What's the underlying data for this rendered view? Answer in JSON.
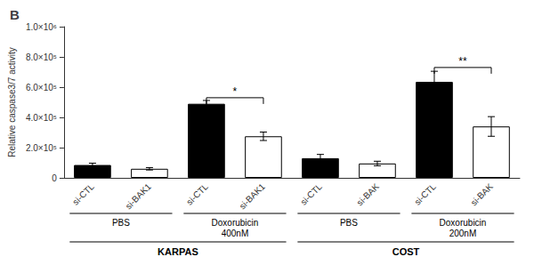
{
  "chart_data": {
    "type": "bar",
    "title": "B",
    "categories": [
      "si-CTL",
      "si-BAK1",
      "si-CTL",
      "si-BAK1",
      "si-CTL",
      "si-BAK",
      "si-CTL",
      "si-BAK"
    ],
    "values": [
      85000,
      60000,
      490000,
      275000,
      130000,
      95000,
      635000,
      340000
    ],
    "errors": [
      12000,
      8000,
      22000,
      28000,
      25000,
      15000,
      70000,
      65000
    ],
    "colors": [
      "#000000",
      "#ffffff",
      "#000000",
      "#ffffff",
      "#000000",
      "#ffffff",
      "#000000",
      "#ffffff"
    ],
    "ylabel": "Relative caspase3/7 activity",
    "ylim": [
      0,
      1000000
    ],
    "yticks": [
      0,
      {
        "value": 200000,
        "label": "2.0×10⁵"
      },
      {
        "value": 400000,
        "label": "4.0×10⁵"
      },
      {
        "value": 600000,
        "label": "6.0×10⁵"
      },
      {
        "value": 800000,
        "label": "8.0×10⁵"
      },
      {
        "value": 1000000,
        "label": "1.0×10⁶"
      }
    ],
    "grid": false,
    "annotations": [
      {
        "text": "*",
        "x": [
          2,
          3
        ],
        "y": 530000
      },
      {
        "text": "**",
        "x": [
          6,
          7
        ],
        "y": 730000
      }
    ],
    "x_groups": [
      [
        {
          "text": "PBS",
          "x": [
            0,
            1
          ]
        },
        {
          "text": "Doxorubicin\n400nM",
          "x": [
            2,
            3
          ]
        },
        {
          "text": "PBS",
          "x": [
            4,
            5
          ]
        },
        {
          "text": "Doxorubicin\n200nM",
          "x": [
            6,
            7
          ]
        }
      ],
      [
        {
          "text": "KARPAS",
          "x": [
            0,
            3
          ]
        },
        {
          "text": "COST",
          "x": [
            4,
            7
          ]
        }
      ]
    ]
  }
}
